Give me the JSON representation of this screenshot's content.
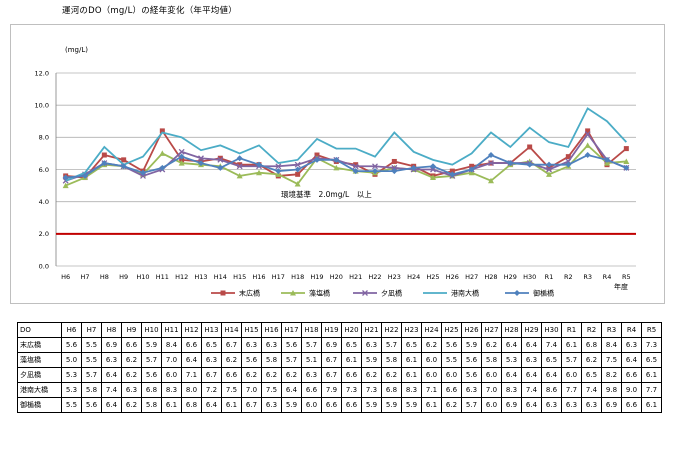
{
  "page": {
    "title": "運河のDO（mg/L）の経年変化（年平均値）"
  },
  "chart_data": {
    "type": "line",
    "title": "",
    "ylabel": "(mg/L)",
    "xlabel": "年度",
    "ylim": [
      0,
      12
    ],
    "yticks": [
      "0.0",
      "2.0",
      "4.0",
      "6.0",
      "8.0",
      "10.0",
      "12.0"
    ],
    "categories": [
      "H6",
      "H7",
      "H8",
      "H9",
      "H10",
      "H11",
      "H12",
      "H13",
      "H14",
      "H15",
      "H16",
      "H17",
      "H18",
      "H19",
      "H20",
      "H21",
      "H22",
      "H23",
      "H24",
      "H25",
      "H26",
      "H27",
      "H28",
      "H29",
      "H30",
      "R1",
      "R2",
      "R3",
      "R4",
      "R5"
    ],
    "reference_line": {
      "value": 2.0,
      "label": "環境基準　2.0mg/L　以上",
      "color": "#c00000"
    },
    "grid": true,
    "legend_position": "bottom",
    "series": [
      {
        "name": "末広橋",
        "color": "#b94a48",
        "marker": "square",
        "values": [
          5.6,
          5.5,
          6.9,
          6.6,
          5.9,
          8.4,
          6.6,
          6.5,
          6.7,
          6.3,
          6.3,
          5.6,
          5.7,
          6.9,
          6.5,
          6.3,
          5.7,
          6.5,
          6.2,
          5.6,
          5.9,
          6.2,
          6.4,
          6.4,
          7.4,
          6.1,
          6.8,
          8.4,
          6.3,
          7.3
        ]
      },
      {
        "name": "藻塩橋",
        "color": "#9bbb59",
        "marker": "triangle",
        "values": [
          5.0,
          5.5,
          6.3,
          6.2,
          5.7,
          7.0,
          6.4,
          6.3,
          6.2,
          5.6,
          5.8,
          5.7,
          5.1,
          6.7,
          6.1,
          5.9,
          5.8,
          6.1,
          6.0,
          5.5,
          5.6,
          5.8,
          5.3,
          6.3,
          6.5,
          5.7,
          6.2,
          7.5,
          6.4,
          6.5
        ]
      },
      {
        "name": "夕凪橋",
        "color": "#8064a2",
        "marker": "x",
        "values": [
          5.3,
          5.7,
          6.4,
          6.2,
          5.6,
          6.0,
          7.1,
          6.7,
          6.6,
          6.2,
          6.2,
          6.2,
          6.3,
          6.7,
          6.6,
          6.2,
          6.2,
          6.1,
          6.0,
          6.0,
          5.6,
          6.0,
          6.4,
          6.4,
          6.4,
          6.0,
          6.5,
          8.2,
          6.6,
          6.1
        ]
      },
      {
        "name": "港南大橋",
        "color": "#4bacc6",
        "marker": "none",
        "values": [
          5.3,
          5.8,
          7.4,
          6.3,
          6.8,
          8.3,
          8.0,
          7.2,
          7.5,
          7.0,
          7.5,
          6.4,
          6.6,
          7.9,
          7.3,
          7.3,
          6.8,
          8.3,
          7.1,
          6.6,
          6.3,
          7.0,
          8.3,
          7.4,
          8.6,
          7.7,
          7.4,
          9.8,
          9.0,
          7.7
        ]
      },
      {
        "name": "御楯橋",
        "color": "#4f81bd",
        "marker": "diamond",
        "values": [
          5.5,
          5.6,
          6.4,
          6.2,
          5.8,
          6.1,
          6.8,
          6.4,
          6.1,
          6.7,
          6.3,
          5.9,
          6.0,
          6.6,
          6.6,
          5.9,
          5.9,
          5.9,
          6.1,
          6.2,
          5.7,
          6.0,
          6.9,
          6.4,
          6.3,
          6.3,
          6.3,
          6.9,
          6.6,
          6.1
        ]
      }
    ]
  },
  "table": {
    "header_label": "DO"
  }
}
